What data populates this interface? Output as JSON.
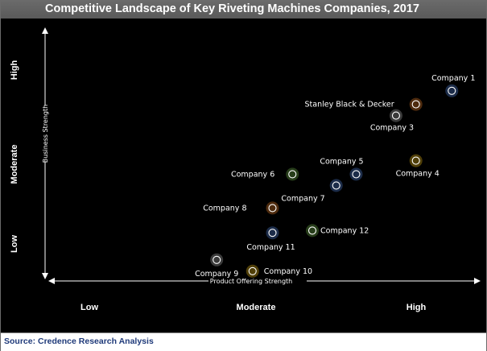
{
  "title": "Competitive Landscape of Key Riveting Machines Companies, 2017",
  "source": "Source: Credence Research Analysis",
  "chart_data": {
    "type": "scatter",
    "title": "Competitive Landscape of Key Riveting Machines Companies, 2017",
    "xlabel": "Product Offering Strength",
    "ylabel": "Business Strength",
    "x_tick_labels": [
      "Low",
      "Moderate",
      "High"
    ],
    "y_tick_labels": [
      "Low",
      "Moderate",
      "High"
    ],
    "xlim": [
      0,
      10
    ],
    "ylim": [
      0,
      10
    ],
    "grid": false,
    "colors": {
      "blue": "#4f7fd1",
      "orange": "#e07a27",
      "gray": "#a6a6a6",
      "yellow": "#e6b416",
      "green": "#6fb04a"
    },
    "points": [
      {
        "label": "Company 1",
        "x": 9.5,
        "y": 8.4,
        "color": "blue"
      },
      {
        "label": "Stanley Black & Decker",
        "x": 8.6,
        "y": 7.8,
        "color": "orange"
      },
      {
        "label": "Company 3",
        "x": 8.1,
        "y": 7.3,
        "color": "gray"
      },
      {
        "label": "Company 4",
        "x": 8.6,
        "y": 5.3,
        "color": "yellow"
      },
      {
        "label": "Company 5",
        "x": 7.1,
        "y": 4.7,
        "color": "blue"
      },
      {
        "label": "Company 6",
        "x": 5.5,
        "y": 4.7,
        "color": "green"
      },
      {
        "label": "Company 7",
        "x": 6.6,
        "y": 4.2,
        "color": "blue"
      },
      {
        "label": "Company 8",
        "x": 5.0,
        "y": 3.2,
        "color": "orange"
      },
      {
        "label": "Company 11",
        "x": 5.0,
        "y": 2.1,
        "color": "blue"
      },
      {
        "label": "Company 12",
        "x": 6.0,
        "y": 2.2,
        "color": "green"
      },
      {
        "label": "Company 9",
        "x": 3.6,
        "y": 0.9,
        "color": "gray"
      },
      {
        "label": "Company 10",
        "x": 4.5,
        "y": 0.4,
        "color": "yellow"
      }
    ]
  }
}
